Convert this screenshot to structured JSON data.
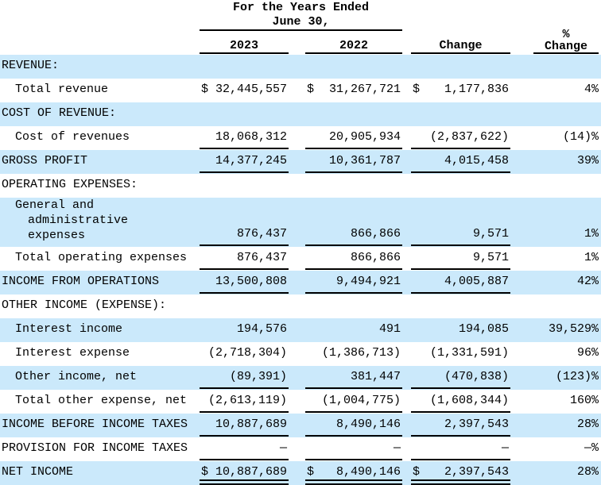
{
  "table": {
    "currency_symbol": "$",
    "colors": {
      "highlight_row": "#cbe9fb",
      "text": "#000000",
      "rule": "#000000"
    },
    "header": {
      "group_title_lines": [
        "For the Years Ended",
        "June 30,"
      ],
      "col_2023": "2023",
      "col_2022": "2022",
      "col_change": "Change",
      "col_pct_lines": [
        "%",
        "Change"
      ]
    },
    "rows": [
      {
        "label": "REVENUE:",
        "indent": 0,
        "highlight": true,
        "dollar": false,
        "v2023": "",
        "v2022": "",
        "change": "",
        "pct": "",
        "underline": "none"
      },
      {
        "label": "Total revenue",
        "indent": 1,
        "highlight": false,
        "dollar": true,
        "v2023": "32,445,557",
        "v2022": "31,267,721",
        "change": "1,177,836",
        "pct": "4%",
        "underline": "none"
      },
      {
        "label": "COST OF REVENUE:",
        "indent": 0,
        "highlight": true,
        "dollar": false,
        "v2023": "",
        "v2022": "",
        "change": "",
        "pct": "",
        "underline": "none"
      },
      {
        "label": "Cost of revenues",
        "indent": 1,
        "highlight": false,
        "dollar": false,
        "v2023": "18,068,312",
        "v2022": "20,905,934",
        "change": "(2,837,622)",
        "pct": "(14)%",
        "underline": "single"
      },
      {
        "label": "GROSS PROFIT",
        "indent": 0,
        "highlight": true,
        "dollar": false,
        "v2023": "14,377,245",
        "v2022": "10,361,787",
        "change": "4,015,458",
        "pct": "39%",
        "underline": "single"
      },
      {
        "label": "OPERATING EXPENSES:",
        "indent": 0,
        "highlight": false,
        "dollar": false,
        "v2023": "",
        "v2022": "",
        "change": "",
        "pct": "",
        "underline": "none"
      },
      {
        "label_lines": [
          "General and",
          "administrative",
          "expenses"
        ],
        "indent": 1,
        "highlight": true,
        "dollar": false,
        "tall": true,
        "v2023": "876,437",
        "v2022": "866,866",
        "change": "9,571",
        "pct": "1%",
        "underline": "single"
      },
      {
        "label": "Total operating expenses",
        "indent": 1,
        "highlight": false,
        "dollar": false,
        "v2023": "876,437",
        "v2022": "866,866",
        "change": "9,571",
        "pct": "1%",
        "underline": "single"
      },
      {
        "label": "INCOME FROM OPERATIONS",
        "indent": 0,
        "highlight": true,
        "dollar": false,
        "v2023": "13,500,808",
        "v2022": "9,494,921",
        "change": "4,005,887",
        "pct": "42%",
        "underline": "single"
      },
      {
        "label": "OTHER INCOME (EXPENSE):",
        "indent": 0,
        "highlight": false,
        "dollar": false,
        "v2023": "",
        "v2022": "",
        "change": "",
        "pct": "",
        "underline": "none"
      },
      {
        "label": "Interest income",
        "indent": 1,
        "highlight": true,
        "dollar": false,
        "v2023": "194,576",
        "v2022": "491",
        "change": "194,085",
        "pct": "39,529%",
        "underline": "none"
      },
      {
        "label": "Interest expense",
        "indent": 1,
        "highlight": false,
        "dollar": false,
        "v2023": "(2,718,304)",
        "v2022": "(1,386,713)",
        "change": "(1,331,591)",
        "pct": "96%",
        "underline": "none"
      },
      {
        "label": "Other income, net",
        "indent": 1,
        "highlight": true,
        "dollar": false,
        "v2023": "(89,391)",
        "v2022": "381,447",
        "change": "(470,838)",
        "pct": "(123)%",
        "underline": "single"
      },
      {
        "label": "Total other expense, net",
        "indent": 1,
        "highlight": false,
        "dollar": false,
        "v2023": "(2,613,119)",
        "v2022": "(1,004,775)",
        "change": "(1,608,344)",
        "pct": "160%",
        "underline": "single"
      },
      {
        "label": "INCOME BEFORE INCOME TAXES",
        "indent": 0,
        "highlight": true,
        "dollar": false,
        "v2023": "10,887,689",
        "v2022": "8,490,146",
        "change": "2,397,543",
        "pct": "28%",
        "underline": "single"
      },
      {
        "label": "PROVISION FOR INCOME TAXES",
        "indent": 0,
        "highlight": false,
        "dollar": false,
        "v2023": "—",
        "v2022": "—",
        "change": "—",
        "pct": "—%",
        "underline": "single"
      },
      {
        "label": "NET INCOME",
        "indent": 0,
        "highlight": true,
        "dollar": true,
        "v2023": "10,887,689",
        "v2022": "8,490,146",
        "change": "2,397,543",
        "pct": "28%",
        "underline": "double"
      }
    ]
  }
}
